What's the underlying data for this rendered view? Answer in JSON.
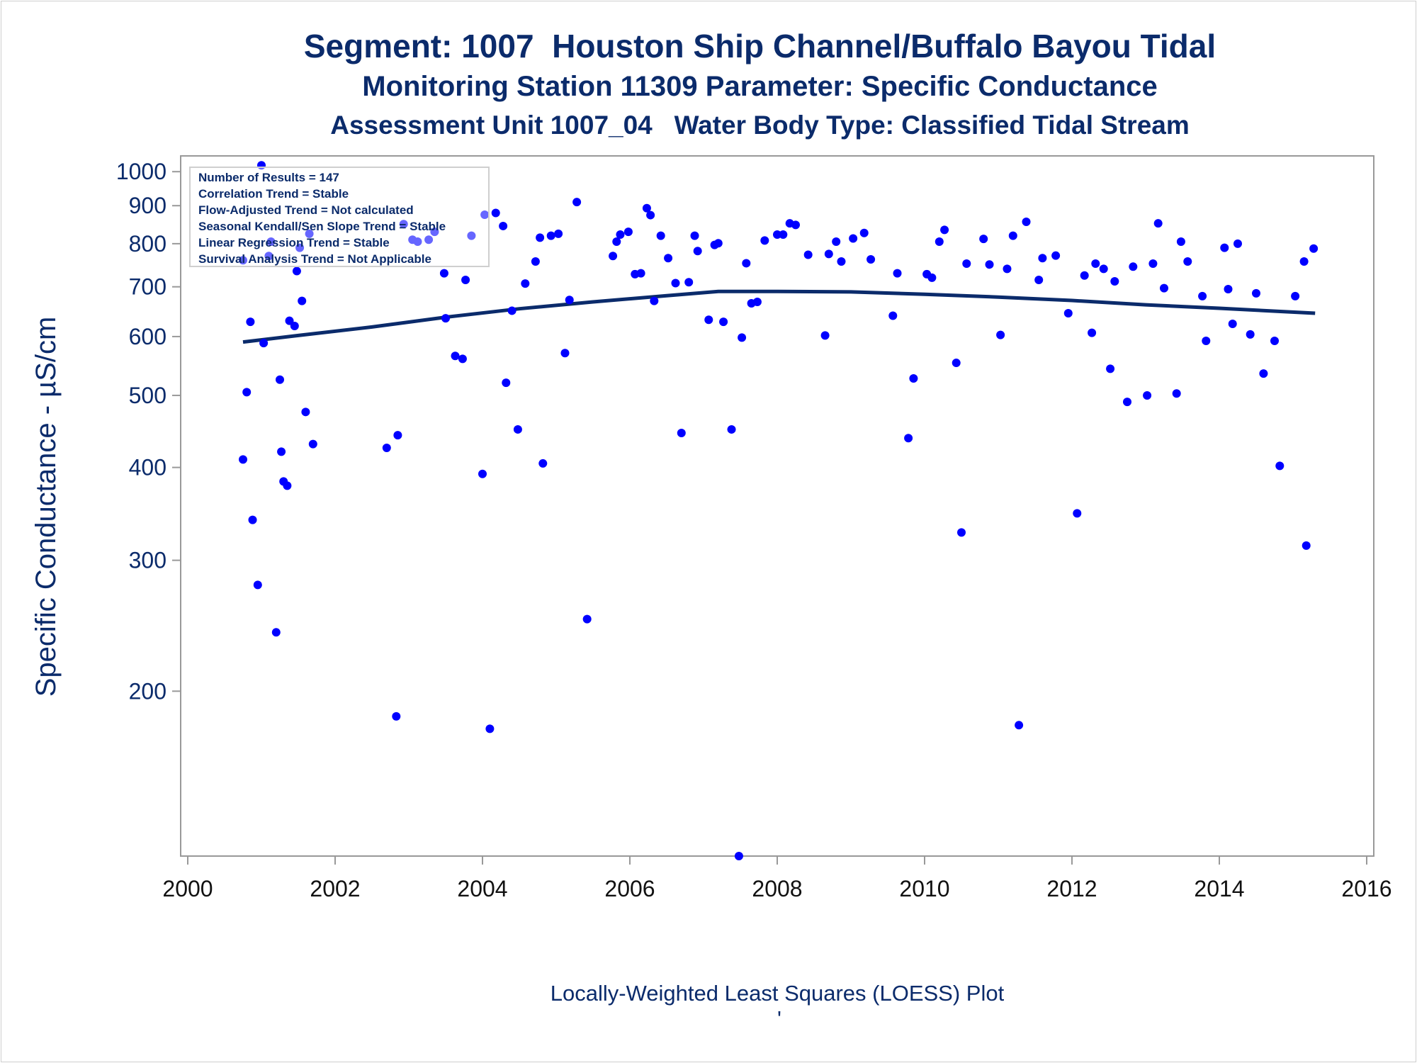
{
  "header": {
    "title": "Segment: 1007  Houston Ship Channel/Buffalo Bayou Tidal",
    "subtitle1": "Monitoring Station 11309 Parameter: Specific Conductance",
    "subtitle2": "Assessment Unit 1007_04   Water Body Type: Classified Tidal Stream"
  },
  "stats_box": {
    "lines": [
      "Number of Results = 147",
      "Correlation Trend = Stable",
      "Flow-Adjusted Trend = Not calculated",
      "Seasonal Kendall/Sen Slope Trend = Stable",
      "Linear Regression Trend = Stable",
      "Survival Analysis Trend = Not Applicable"
    ]
  },
  "footnote": "Locally-Weighted Least Squares (LOESS) Plot",
  "footnote_mark": "'",
  "colors": {
    "points": "#0000ff",
    "loess": "#0b2b6b",
    "text": "#0b2b6b",
    "axis": "#999999"
  },
  "chart_data": {
    "type": "scatter",
    "title": "Segment: 1007  Houston Ship Channel/Buffalo Bayou Tidal",
    "ylabel": "Specific Conductance -  µS/cm",
    "xlabel": "",
    "yscale": "log",
    "xlim": [
      2000,
      2016
    ],
    "ylim": [
      120,
      1050
    ],
    "xticks": [
      2000,
      2002,
      2004,
      2006,
      2008,
      2010,
      2012,
      2014,
      2016
    ],
    "yticks": [
      200,
      300,
      400,
      500,
      600,
      700,
      800,
      900,
      1000
    ],
    "grid": false,
    "series": [
      {
        "kind": "points",
        "x": [
          2000.75,
          2000.75,
          2000.8,
          2000.85,
          2000.88,
          2000.95,
          2001.0,
          2001.03,
          2001.1,
          2001.13,
          2001.2,
          2001.25,
          2001.27,
          2001.3,
          2001.35,
          2001.38,
          2001.45,
          2001.48,
          2001.52,
          2001.55,
          2001.6,
          2001.65,
          2001.7,
          2002.7,
          2002.83,
          2002.85,
          2002.93,
          2003.05,
          2003.12,
          2003.27,
          2003.35,
          2003.48,
          2003.5,
          2003.63,
          2003.73,
          2003.77,
          2003.85,
          2004.0,
          2004.03,
          2004.1,
          2004.18,
          2004.28,
          2004.32,
          2004.4,
          2004.48,
          2004.58,
          2004.72,
          2004.78,
          2004.82,
          2004.93,
          2005.03,
          2005.12,
          2005.18,
          2005.28,
          2005.42,
          2005.77,
          2005.82,
          2005.87,
          2005.98,
          2006.07,
          2006.15,
          2006.23,
          2006.28,
          2006.33,
          2006.42,
          2006.52,
          2006.62,
          2006.7,
          2006.8,
          2006.88,
          2006.92,
          2007.07,
          2007.15,
          2007.2,
          2007.27,
          2007.38,
          2007.48,
          2007.52,
          2007.58,
          2007.65,
          2007.73,
          2007.83,
          2008.0,
          2008.08,
          2008.17,
          2008.25,
          2008.42,
          2008.65,
          2008.7,
          2008.8,
          2008.87,
          2009.03,
          2009.18,
          2009.27,
          2009.57,
          2009.63,
          2009.78,
          2009.85,
          2010.03,
          2010.1,
          2010.2,
          2010.27,
          2010.43,
          2010.5,
          2010.57,
          2010.8,
          2010.88,
          2011.03,
          2011.12,
          2011.2,
          2011.28,
          2011.38,
          2011.55,
          2011.6,
          2011.78,
          2011.95,
          2012.07,
          2012.17,
          2012.27,
          2012.32,
          2012.43,
          2012.52,
          2012.58,
          2012.75,
          2012.83,
          2013.02,
          2013.1,
          2013.17,
          2013.25,
          2013.42,
          2013.48,
          2013.57,
          2013.77,
          2013.82,
          2014.07,
          2014.12,
          2014.18,
          2014.25,
          2014.42,
          2014.5,
          2014.6,
          2014.75,
          2014.82,
          2015.03,
          2015.15,
          2015.18,
          2015.28
        ],
        "y": [
          760,
          410,
          505,
          628,
          340,
          278,
          1020,
          588,
          770,
          805,
          240,
          525,
          420,
          383,
          378,
          630,
          620,
          735,
          790,
          670,
          475,
          825,
          430,
          425,
          185,
          442,
          850,
          810,
          805,
          810,
          830,
          730,
          635,
          565,
          560,
          715,
          820,
          392,
          875,
          178,
          880,
          845,
          520,
          650,
          450,
          707,
          757,
          815,
          405,
          820,
          825,
          570,
          672,
          910,
          250,
          770,
          805,
          823,
          830,
          728,
          730,
          893,
          874,
          670,
          820,
          765,
          708,
          445,
          710,
          820,
          782,
          632,
          797,
          801,
          628,
          450,
          120,
          598,
          753,
          665,
          668,
          808,
          823,
          823,
          852,
          848,
          773,
          602,
          775,
          805,
          757,
          813,
          827,
          762,
          640,
          730,
          438,
          527,
          728,
          720,
          805,
          835,
          553,
          327,
          752,
          812,
          750,
          603,
          740,
          820,
          180,
          856,
          715,
          765,
          771,
          645,
          347,
          725,
          607,
          752,
          740,
          543,
          712,
          490,
          745,
          500,
          752,
          852,
          697,
          503,
          805,
          757,
          680,
          592,
          790,
          695,
          624,
          800,
          604,
          686,
          535,
          592,
          402,
          680,
          757,
          314,
          788
        ]
      },
      {
        "kind": "loess",
        "x": [
          2000.75,
          2001.5,
          2002.5,
          2003.5,
          2004.5,
          2005.5,
          2006.5,
          2007.2,
          2008.0,
          2009.0,
          2010.0,
          2011.0,
          2012.0,
          2013.0,
          2014.0,
          2015.3
        ],
        "y": [
          590,
          602,
          618,
          637,
          654,
          668,
          681,
          690,
          690,
          689,
          684,
          678,
          671,
          662,
          655,
          645
        ]
      }
    ]
  }
}
